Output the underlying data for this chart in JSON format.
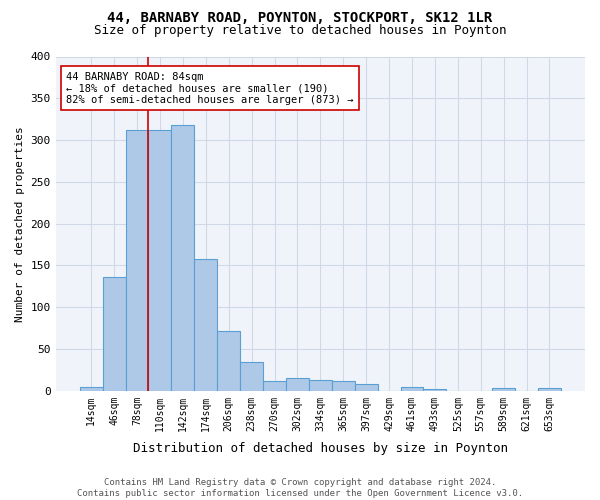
{
  "title1": "44, BARNABY ROAD, POYNTON, STOCKPORT, SK12 1LR",
  "title2": "Size of property relative to detached houses in Poynton",
  "xlabel": "Distribution of detached houses by size in Poynton",
  "ylabel": "Number of detached properties",
  "bar_labels": [
    "14sqm",
    "46sqm",
    "78sqm",
    "110sqm",
    "142sqm",
    "174sqm",
    "206sqm",
    "238sqm",
    "270sqm",
    "302sqm",
    "334sqm",
    "365sqm",
    "397sqm",
    "429sqm",
    "461sqm",
    "493sqm",
    "525sqm",
    "557sqm",
    "589sqm",
    "621sqm",
    "653sqm"
  ],
  "bar_heights": [
    4,
    136,
    312,
    312,
    318,
    158,
    72,
    34,
    12,
    15,
    13,
    12,
    8,
    0,
    5,
    2,
    0,
    0,
    3,
    0,
    3
  ],
  "bar_color": "#aec9e8",
  "bar_edge_color": "#5a9fd4",
  "bar_width": 1.0,
  "vline_x": 2.5,
  "vline_color": "#cc0000",
  "annotation_text": "44 BARNABY ROAD: 84sqm\n← 18% of detached houses are smaller (190)\n82% of semi-detached houses are larger (873) →",
  "annotation_box_color": "white",
  "annotation_edge_color": "#cc0000",
  "ylim": [
    0,
    400
  ],
  "yticks": [
    0,
    50,
    100,
    150,
    200,
    250,
    300,
    350,
    400
  ],
  "grid_color": "#d0d8e8",
  "bg_color": "#f0f4fa",
  "footer": "Contains HM Land Registry data © Crown copyright and database right 2024.\nContains public sector information licensed under the Open Government Licence v3.0."
}
